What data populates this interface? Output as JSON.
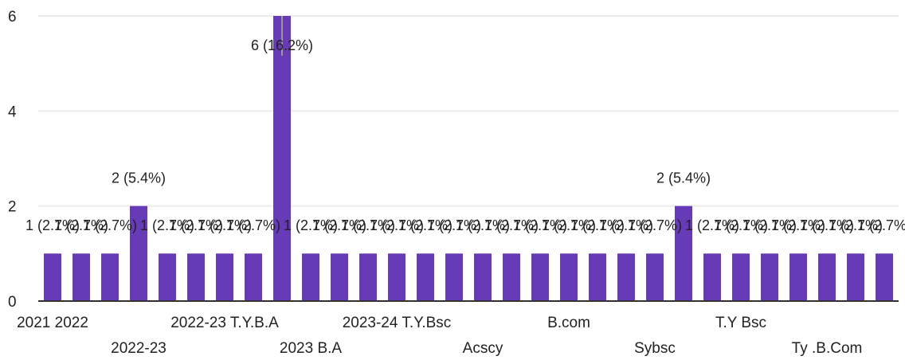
{
  "chart_data": {
    "type": "bar",
    "categories": [
      "2021 2022",
      null,
      null,
      "2022-23",
      null,
      null,
      "2022-23 T.Y.B.A",
      null,
      null,
      "2023 B.A",
      null,
      null,
      "2023-24 T.Y.Bsc",
      null,
      null,
      "Acscy",
      null,
      null,
      "B.com",
      null,
      null,
      "Sybsc",
      null,
      null,
      "T.Y Bsc",
      null,
      null,
      "Ty .B.Com",
      null,
      null
    ],
    "values": [
      1,
      1,
      1,
      2,
      1,
      1,
      1,
      1,
      6,
      1,
      1,
      1,
      1,
      1,
      1,
      1,
      1,
      1,
      1,
      1,
      1,
      1,
      2,
      1,
      1,
      1,
      1,
      1,
      1,
      1
    ],
    "value_labels": [
      "1 (2.7%)",
      "1 (2.7%)",
      "1 (2.7%)",
      "2 (5.4%)",
      "1 (2.7%)",
      "1 (2.7%)",
      "1 (2.7%)",
      "1 (2.7%)",
      "6 (16.2%)",
      "1 (2.7%)",
      "1 (2.7%)",
      "1 (2.7%)",
      "1 (2.7%)",
      "1 (2.7%)",
      "1 (2.7%)",
      "1 (2.7%)",
      "1 (2.7%)",
      "1 (2.7%)",
      "1 (2.7%)",
      "1 (2.7%)",
      "1 (2.7%)",
      "1 (2.7%)",
      "2 (5.4%)",
      "1 (2.7%)",
      "1 (2.7%)",
      "1 (2.7%)",
      "1 (2.7%)",
      "1 (2.7%)",
      "1 (2.7%)",
      "1 (2.7%)"
    ],
    "color": "#673ab7",
    "ylim": [
      0,
      6
    ],
    "yticks": [
      0,
      2,
      4,
      6
    ],
    "grid": true
  }
}
